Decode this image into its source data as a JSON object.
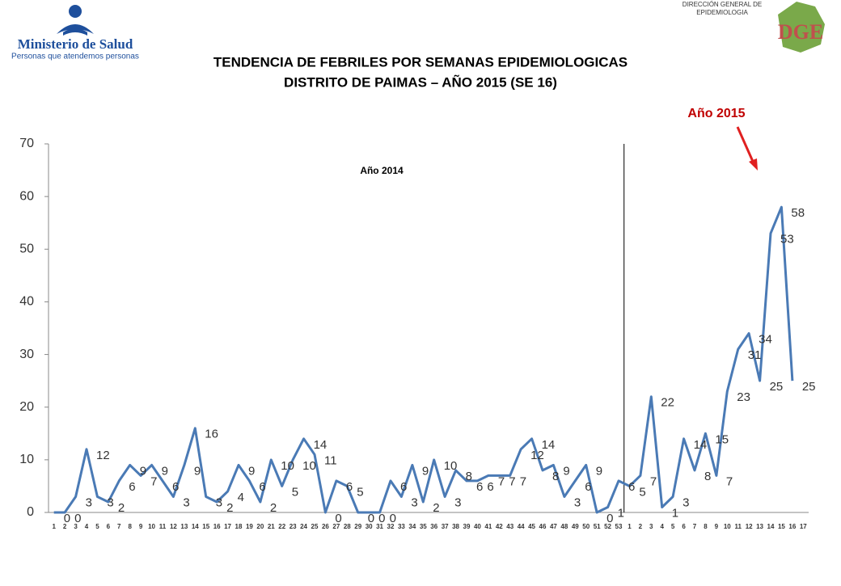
{
  "header": {
    "ministry": "Ministerio de Salud",
    "motto": "Personas que atendemos personas",
    "agency": [
      "DIRECCIÓN GENERAL DE",
      "EPIDEMIOLOGIA"
    ],
    "logo": "DGE"
  },
  "chart_data": {
    "type": "line",
    "title": [
      "TENDENCIA DE FEBRILES POR SEMANAS EPIDEMIOLOGICAS",
      "DISTRITO DE PAIMAS  – AÑO 2015 (SE 16)"
    ],
    "annotations": [
      "Año 2014",
      "Año 2015"
    ],
    "categories": [
      "1",
      "2",
      "3",
      "4",
      "5",
      "6",
      "7",
      "8",
      "9",
      "10",
      "11",
      "12",
      "13",
      "14",
      "15",
      "16",
      "17",
      "18",
      "19",
      "20",
      "21",
      "22",
      "23",
      "24",
      "25",
      "26",
      "27",
      "28",
      "29",
      "30",
      "31",
      "32",
      "33",
      "34",
      "35",
      "36",
      "37",
      "38",
      "39",
      "40",
      "41",
      "42",
      "43",
      "44",
      "45",
      "46",
      "47",
      "48",
      "49",
      "50",
      "51",
      "52",
      "53",
      "1",
      "2",
      "3",
      "4",
      "5",
      "6",
      "7",
      "8",
      "9",
      "10",
      "11",
      "12",
      "13",
      "14",
      "15",
      "16",
      "17"
    ],
    "series": [
      {
        "name": "Febriles",
        "color": "#4a7ab5",
        "values": [
          0,
          0,
          3,
          12,
          3,
          2,
          6,
          9,
          7,
          9,
          6,
          3,
          9,
          16,
          3,
          2,
          4,
          9,
          6,
          2,
          10,
          5,
          10,
          14,
          11,
          0,
          6,
          5,
          0,
          0,
          0,
          6,
          3,
          9,
          2,
          10,
          3,
          8,
          6,
          6,
          7,
          7,
          7,
          12,
          14,
          8,
          9,
          3,
          6,
          9,
          0,
          1,
          6,
          5,
          7,
          22,
          1,
          3,
          14,
          8,
          15,
          7,
          23,
          31,
          34,
          25,
          53,
          58,
          25,
          null
        ]
      }
    ],
    "ylim": [
      0,
      70
    ],
    "yticks": [
      0,
      10,
      20,
      30,
      40,
      50,
      60,
      70
    ],
    "grid": false
  }
}
